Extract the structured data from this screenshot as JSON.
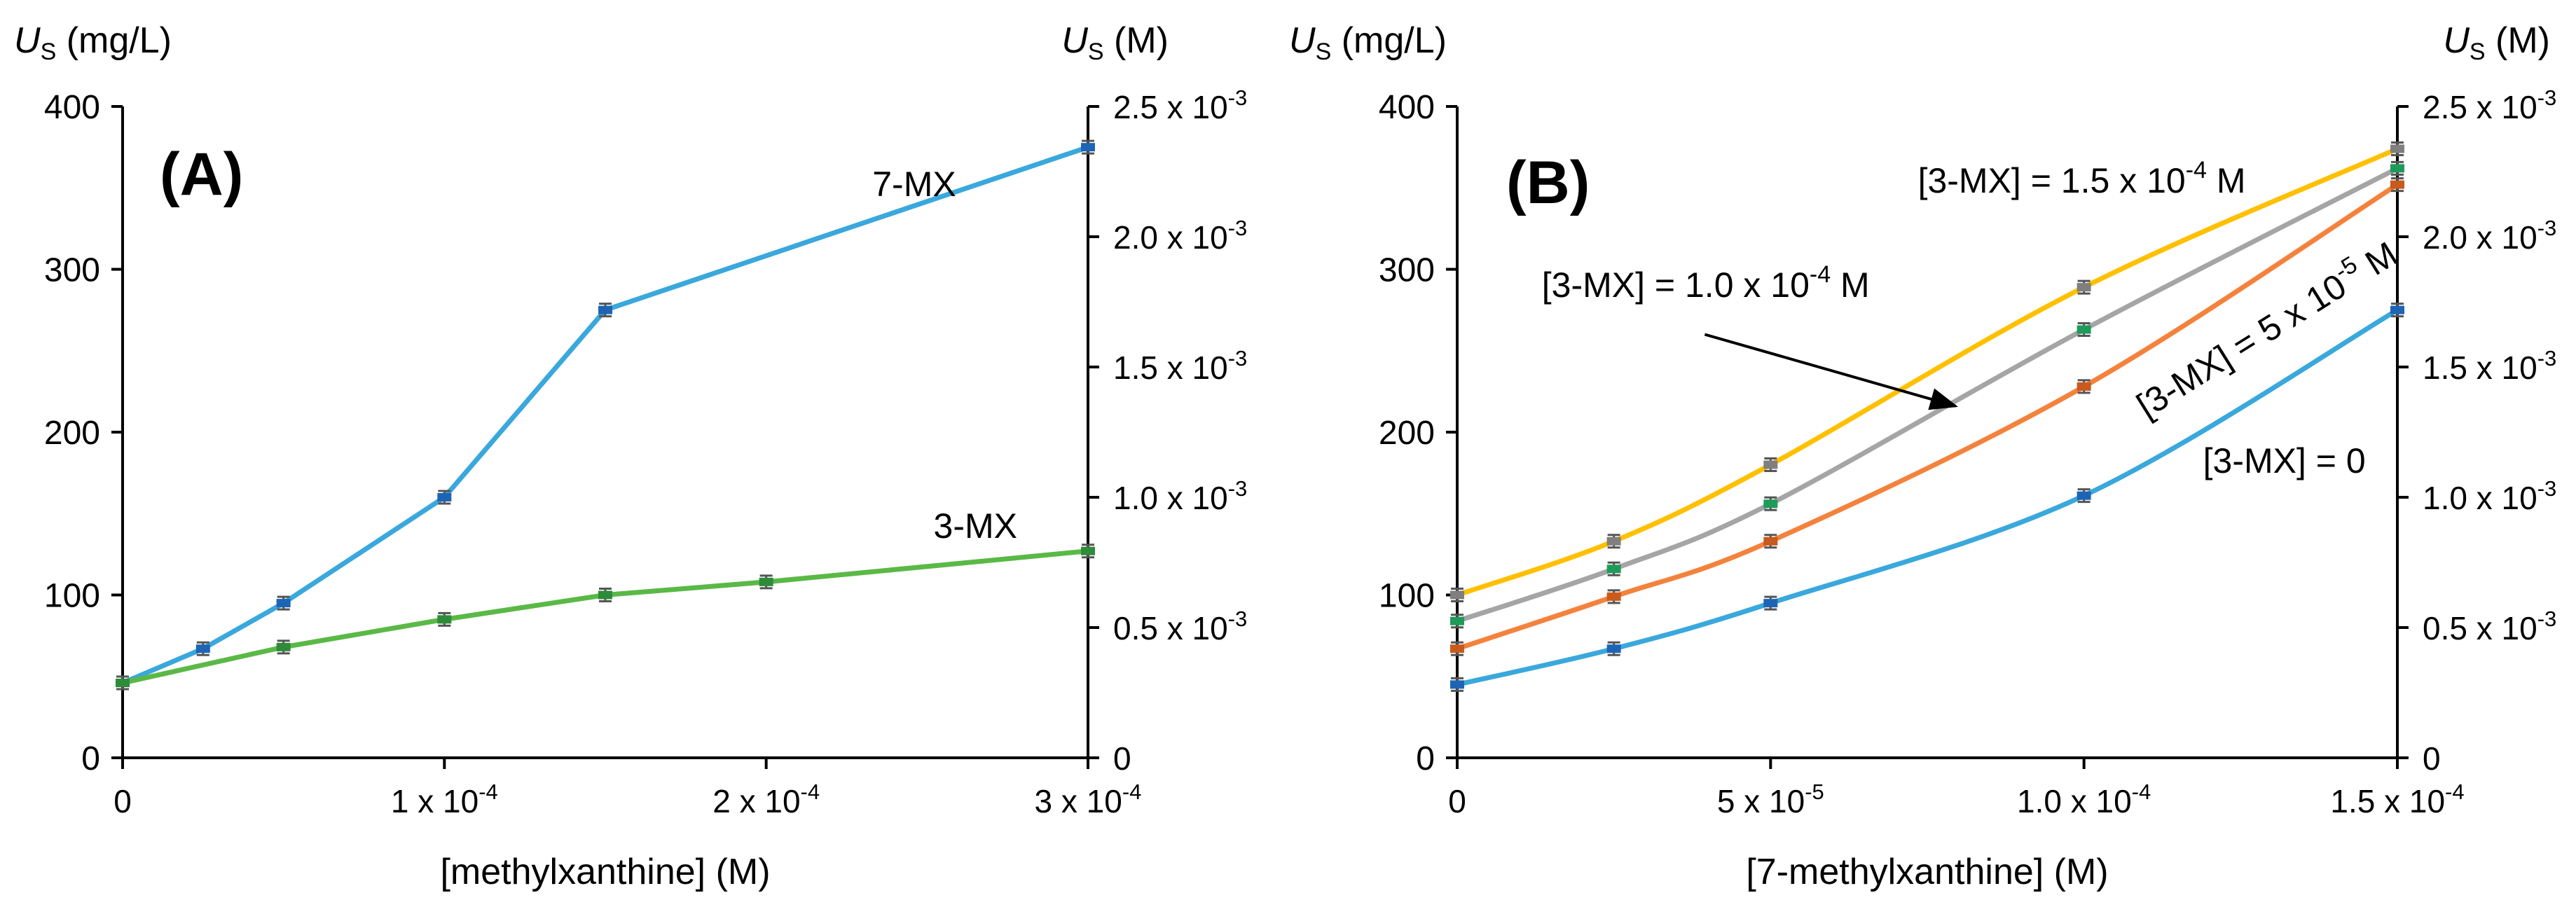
{
  "chart_data": [
    {
      "panel": "A",
      "type": "line",
      "panel_label": "(A)",
      "xlabel": "[methylxanthine] (M)",
      "ylabel_left": {
        "symbol": "U",
        "sub": "S",
        "unit": " (mg/L)"
      },
      "ylabel_right": {
        "symbol": "U",
        "sub": "S",
        "unit": " (M)"
      },
      "xlim": [
        0,
        0.0003
      ],
      "ylim": [
        0,
        400
      ],
      "x_ticks": [
        {
          "value": 0,
          "mant": "0",
          "exp": ""
        },
        {
          "value": 0.0001,
          "mant": "1 x 10",
          "exp": "-4"
        },
        {
          "value": 0.0002,
          "mant": "2 x 10",
          "exp": "-4"
        },
        {
          "value": 0.0003,
          "mant": "3 x 10",
          "exp": "-4"
        }
      ],
      "y_ticks_left": [
        0,
        100,
        200,
        300,
        400
      ],
      "y_ticks_right": [
        {
          "mant": "0",
          "exp": ""
        },
        {
          "mant": "0.5 x 10",
          "exp": "-3"
        },
        {
          "mant": "1.0 x 10",
          "exp": "-3"
        },
        {
          "mant": "1.5 x 10",
          "exp": "-3"
        },
        {
          "mant": "2.0 x 10",
          "exp": "-3"
        },
        {
          "mant": "2.5 x 10",
          "exp": "-3"
        }
      ],
      "series": [
        {
          "name": "7-MX",
          "color": "#3aa8dc",
          "marker_color": "#1e64b4",
          "x": [
            0,
            2.5e-05,
            5e-05,
            0.0001,
            0.00015,
            0.0003
          ],
          "y": [
            46,
            67,
            95,
            160,
            275,
            375
          ],
          "label": "7-MX",
          "label_at": [
            0.000233,
            345
          ]
        },
        {
          "name": "3-MX",
          "color": "#5ab946",
          "marker_color": "#2e8b3a",
          "x": [
            0,
            5e-05,
            0.0001,
            0.00015,
            0.0002,
            0.0003
          ],
          "y": [
            46,
            68,
            85,
            100,
            108,
            127
          ],
          "label": "3-MX",
          "label_at": [
            0.000252,
            135
          ]
        }
      ]
    },
    {
      "panel": "B",
      "type": "line",
      "panel_label": "(B)",
      "xlabel": "[7-methylxanthine] (M)",
      "ylabel_left": {
        "symbol": "U",
        "sub": "S",
        "unit": " (mg/L)"
      },
      "ylabel_right": {
        "symbol": "U",
        "sub": "S",
        "unit": " (M)"
      },
      "xlim": [
        0,
        0.00015
      ],
      "ylim": [
        0,
        400
      ],
      "x_ticks": [
        {
          "value": 0,
          "mant": "0",
          "exp": ""
        },
        {
          "value": 5e-05,
          "mant": "5 x 10",
          "exp": "-5"
        },
        {
          "value": 0.0001,
          "mant": "1.0 x 10",
          "exp": "-4"
        },
        {
          "value": 0.00015,
          "mant": "1.5 x 10",
          "exp": "-4"
        }
      ],
      "y_ticks_left": [
        0,
        100,
        200,
        300,
        400
      ],
      "y_ticks_right": [
        {
          "mant": "0",
          "exp": ""
        },
        {
          "mant": "0.5 x 10",
          "exp": "-3"
        },
        {
          "mant": "1.0 x 10",
          "exp": "-3"
        },
        {
          "mant": "1.5 x 10",
          "exp": "-3"
        },
        {
          "mant": "2.0 x 10",
          "exp": "-3"
        },
        {
          "mant": "2.5 x 10",
          "exp": "-3"
        }
      ],
      "series": [
        {
          "name": "[3-MX] = 0",
          "color": "#3aa8dc",
          "marker_color": "#1e64b4",
          "x": [
            0,
            2.5e-05,
            5e-05,
            0.0001,
            0.00015
          ],
          "y": [
            45,
            67,
            95,
            161,
            275
          ],
          "label": "[3-MX] = 0",
          "label_at": [
            0.000119,
            175
          ],
          "label_rotate": 0
        },
        {
          "name": "[3-MX] = 5 x 10-5 M",
          "color": "#f4823c",
          "marker_color": "#c85a1e",
          "x": [
            0,
            2.5e-05,
            5e-05,
            0.0001,
            0.00015
          ],
          "y": [
            67,
            99,
            133,
            228,
            352
          ],
          "label": "[3-MX] = 5 x 10",
          "label_exp": "-5",
          "label_tail": " M",
          "label_at": [
            0.00011,
            208
          ],
          "label_rotate": -32
        },
        {
          "name": "[3-MX] = 1.0 x 10-4 M",
          "color": "#a5a5a5",
          "marker_color": "#1e9b5a",
          "x": [
            0,
            2.5e-05,
            5e-05,
            0.0001,
            0.00015
          ],
          "y": [
            84,
            116,
            156,
            263,
            362
          ],
          "label": "[3-MX] = 1.0 x 10",
          "label_exp": "-4",
          "label_tail": " M",
          "label_at": [
            1.35e-05,
            283
          ],
          "label_rotate": 0
        },
        {
          "name": "[3-MX] = 1.5 x 10-4 M",
          "color": "#ffc000",
          "marker_color": "#7f7f7f",
          "x": [
            0,
            2.5e-05,
            5e-05,
            0.0001,
            0.00015
          ],
          "y": [
            100,
            133,
            180,
            289,
            374
          ],
          "label": "[3-MX] = 1.5 x 10",
          "label_exp": "-4",
          "label_tail": " M",
          "label_at": [
            7.35e-05,
            347
          ],
          "label_rotate": 0
        }
      ],
      "arrow": {
        "from": [
          3.95e-05,
          260
        ],
        "to": [
          7.95e-05,
          216
        ]
      }
    }
  ]
}
